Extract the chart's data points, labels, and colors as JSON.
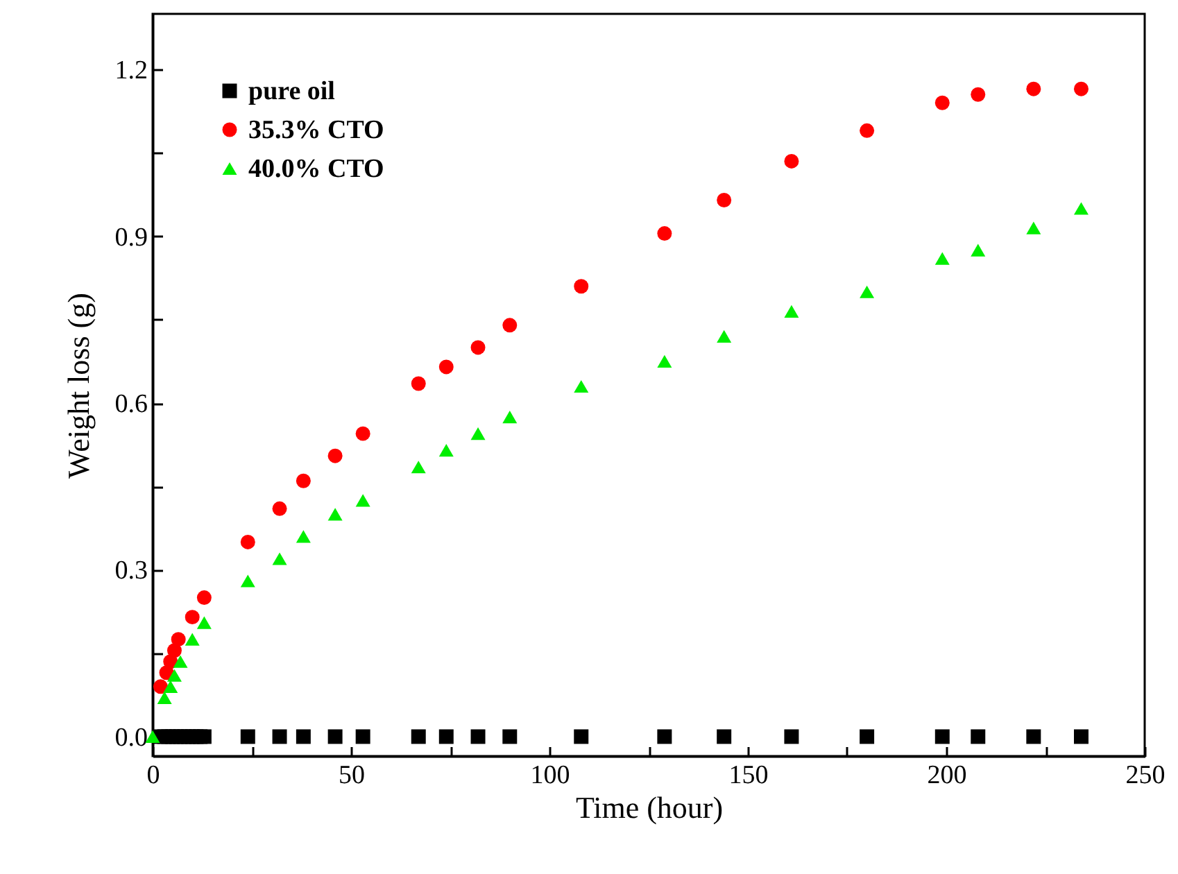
{
  "chart_data": {
    "type": "scatter",
    "xlabel": "Time (hour)",
    "ylabel": "Weight loss (g)",
    "xlim": [
      0,
      250
    ],
    "xticks": [
      0,
      {
        "value": 25,
        "label": null
      },
      50,
      {
        "value": 75,
        "label": null
      },
      100,
      {
        "value": 125,
        "label": null
      },
      150,
      {
        "value": 175,
        "label": null
      },
      200,
      {
        "value": 225,
        "label": null
      },
      250
    ],
    "ylim": [
      -0.035,
      1.3
    ],
    "yticks": [
      {
        "value": 0,
        "label": "0.0"
      },
      {
        "value": 0.15,
        "label": null
      },
      0.3,
      {
        "value": 0.45,
        "label": null
      },
      0.6,
      {
        "value": 0.75,
        "label": null
      },
      0.9,
      {
        "value": 1.05,
        "label": null
      },
      1.2
    ],
    "legend": "top left",
    "series": [
      {
        "name": "pure oil",
        "color": "#000000",
        "marker": "square",
        "x": [
          2,
          3,
          4,
          5,
          6,
          7,
          8,
          9,
          10,
          11,
          12,
          13,
          24,
          32,
          38,
          46,
          53,
          67,
          74,
          82,
          90,
          108,
          129,
          144,
          161,
          180,
          199,
          208,
          222,
          234
        ],
        "values": [
          0,
          0,
          0,
          0,
          0,
          0,
          0,
          0,
          0,
          0,
          0,
          0,
          0,
          0,
          0,
          0,
          0,
          0,
          0,
          0,
          0,
          0,
          0,
          0,
          0,
          0,
          0,
          0,
          0,
          0
        ]
      },
      {
        "name": "35.3% CTO",
        "color": "#ff0000",
        "marker": "circle",
        "x": [
          2,
          3.5,
          4.5,
          5.5,
          6.5,
          10,
          13,
          24,
          32,
          38,
          46,
          53,
          67,
          74,
          82,
          90,
          108,
          129,
          144,
          161,
          180,
          199,
          208,
          222,
          234
        ],
        "values": [
          0.09,
          0.115,
          0.135,
          0.155,
          0.175,
          0.215,
          0.25,
          0.35,
          0.41,
          0.46,
          0.505,
          0.545,
          0.635,
          0.665,
          0.7,
          0.74,
          0.81,
          0.905,
          0.965,
          1.035,
          1.09,
          1.14,
          1.155,
          1.165,
          1.165
        ]
      },
      {
        "name": "40.0% CTO",
        "color": "#00ee00",
        "marker": "triangle",
        "x": [
          0,
          3,
          4.5,
          5.5,
          7,
          10,
          13,
          24,
          32,
          38,
          46,
          53,
          67,
          74,
          82,
          90,
          108,
          129,
          144,
          161,
          180,
          199,
          208,
          222,
          234
        ],
        "values": [
          0,
          0.07,
          0.09,
          0.11,
          0.135,
          0.175,
          0.205,
          0.28,
          0.32,
          0.36,
          0.4,
          0.425,
          0.485,
          0.515,
          0.545,
          0.575,
          0.63,
          0.675,
          0.72,
          0.765,
          0.8,
          0.86,
          0.875,
          0.915,
          0.95
        ]
      }
    ]
  }
}
